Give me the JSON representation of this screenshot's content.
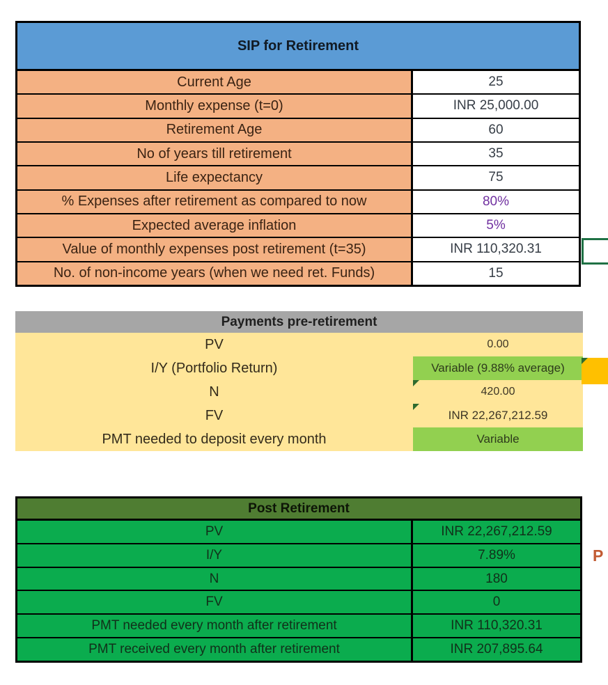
{
  "sip_table": {
    "title": "SIP for Retirement",
    "rows": [
      {
        "label": "Current Age",
        "value": "25"
      },
      {
        "label": "Monthly expense (t=0)",
        "value": "INR 25,000.00"
      },
      {
        "label": "Retirement Age",
        "value": "60"
      },
      {
        "label": "No of years till retirement",
        "value": "35"
      },
      {
        "label": "Life expectancy",
        "value": "75"
      },
      {
        "label": "% Expenses after retirement as compared to now",
        "value": "80%"
      },
      {
        "label": "Expected average inflation",
        "value": "5%"
      },
      {
        "label": "Value of  monthly expenses post retirement (t=35)",
        "value": "INR 110,320.31"
      },
      {
        "label": "No. of non-income years (when we need ret. Funds)",
        "value": "15"
      }
    ]
  },
  "pre_retirement_table": {
    "title": "Payments pre-retirement",
    "rows": [
      {
        "label": "PV",
        "value": "0.00"
      },
      {
        "label": "I/Y (Portfolio Return)",
        "value": "Variable (9.88% average)"
      },
      {
        "label": "N",
        "value": "420.00"
      },
      {
        "label": "FV",
        "value": "INR 22,267,212.59"
      },
      {
        "label": "PMT needed to deposit every month",
        "value": "Variable"
      }
    ]
  },
  "post_retirement_table": {
    "title": "Post Retirement",
    "rows": [
      {
        "label": "PV",
        "value": "INR 22,267,212.59"
      },
      {
        "label": "I/Y",
        "value": "7.89%"
      },
      {
        "label": "N",
        "value": "180"
      },
      {
        "label": "FV",
        "value": "0"
      },
      {
        "label": "PMT needed every month after retirement",
        "value": "INR 110,320.31"
      },
      {
        "label": "PMT received every month after retirement",
        "value": "INR 207,895.64"
      }
    ]
  },
  "annotations": {
    "clipped_letter": "P"
  },
  "colors": {
    "header_blue": "#5B9BD5",
    "row_orange": "#F4B183",
    "header_gray": "#A6A6A6",
    "row_yellow": "#FFE699",
    "variable_green": "#92D050",
    "header_olive": "#4F7D32",
    "row_green": "#0BAC4E",
    "highlight_orange": "#FFC000",
    "selection_green": "#1F7145",
    "percent_purple": "#7030A0"
  }
}
